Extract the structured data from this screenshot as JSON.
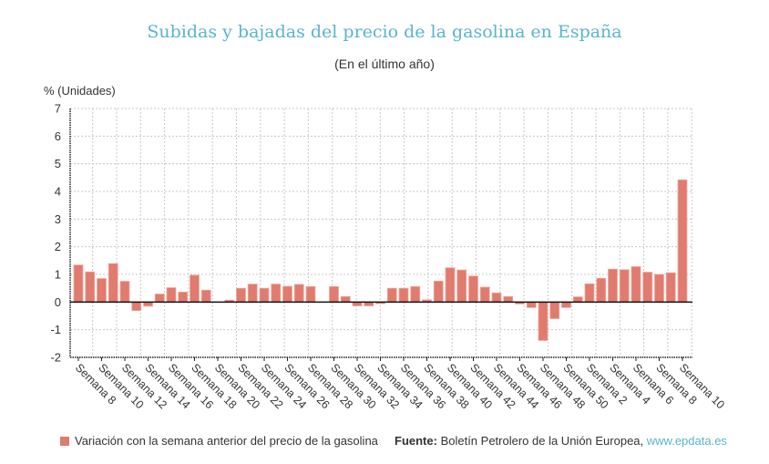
{
  "chart_data": {
    "type": "bar",
    "title": "Subidas y bajadas del precio de la gasolina en España",
    "subtitle": "(En el último año)",
    "ylabel": "% (Unidades)",
    "xlabel": "",
    "ylim": [
      -2,
      7
    ],
    "yticks": [
      7,
      6,
      5,
      4,
      3,
      2,
      1,
      0,
      -1,
      -2
    ],
    "grid": true,
    "legend_position": "bottom-left",
    "series": [
      {
        "name": "Variación con la semana anterior del precio de la gasolina",
        "color": "#e07b6e",
        "values": [
          1.34,
          1.09,
          0.85,
          1.39,
          0.75,
          -0.31,
          -0.15,
          0.29,
          0.52,
          0.36,
          0.97,
          0.43,
          0.0,
          0.07,
          0.5,
          0.65,
          0.5,
          0.65,
          0.57,
          0.64,
          0.56,
          0.0,
          0.56,
          0.2,
          -0.14,
          -0.14,
          -0.06,
          0.5,
          0.5,
          0.56,
          0.08,
          0.76,
          1.24,
          1.16,
          0.94,
          0.54,
          0.33,
          0.2,
          -0.07,
          -0.2,
          -1.39,
          -0.6,
          -0.2,
          0.19,
          0.66,
          0.86,
          1.19,
          1.17,
          1.28,
          1.08,
          1.0,
          1.06,
          4.42
        ]
      }
    ],
    "categories": [
      "Semana 8",
      "",
      "Semana 10",
      "",
      "Semana 12",
      "",
      "Semana 14",
      "",
      "Semana 16",
      "",
      "Semana 18",
      "",
      "Semana 20",
      "",
      "Semana 22",
      "",
      "Semana 24",
      "",
      "Semana 26",
      "",
      "Semana 28",
      "",
      "Semana 30",
      "",
      "Semana 32",
      "",
      "Semana 34",
      "",
      "Semana 36",
      "",
      "Semana 38",
      "",
      "Semana 40",
      "",
      "Semana 42",
      "",
      "Semana 44",
      "",
      "Semana 46",
      "",
      "Semana 48",
      "",
      "Semana 50",
      "",
      "Semana 2",
      "",
      "Semana 4",
      "",
      "Semana 6",
      "",
      "Semana 8",
      "",
      "Semana 10"
    ]
  },
  "legend": {
    "label": "Variación con la semana anterior del precio de la gasolina"
  },
  "source": {
    "prefix": "Fuente:",
    "text": " Boletín Petrolero de la Unión Europea, ",
    "link": "www.epdata.es"
  }
}
